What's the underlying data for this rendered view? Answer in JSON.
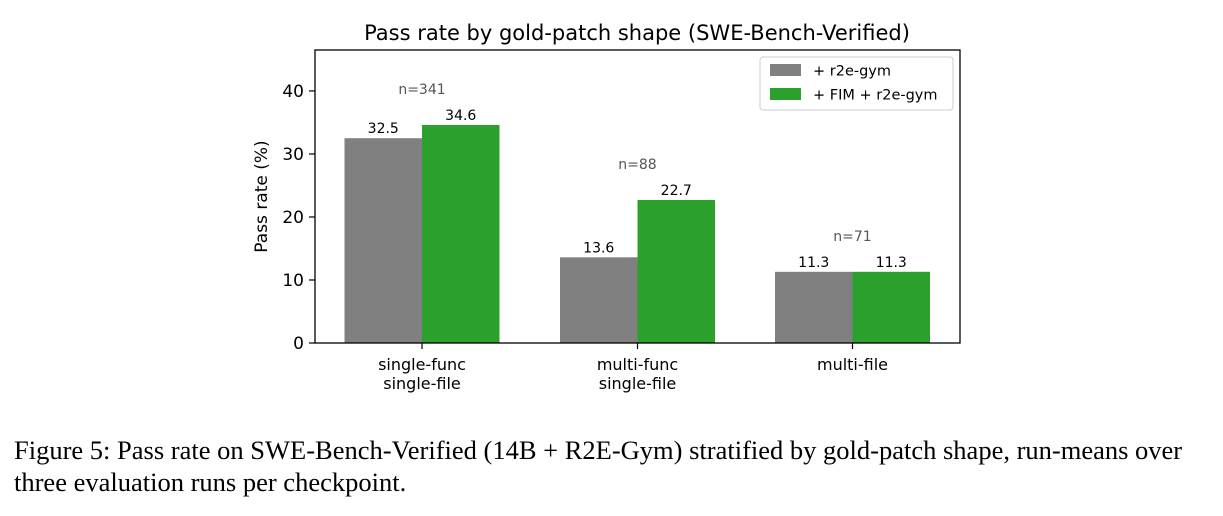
{
  "chart_data": {
    "type": "bar",
    "title": "Pass rate by gold-patch shape (SWE-Bench-Verified)",
    "xlabel": "",
    "ylabel": "Pass rate (%)",
    "ylim": [
      0,
      46.5
    ],
    "yticks": [
      0,
      10,
      20,
      30,
      40
    ],
    "categories": [
      [
        "single-func",
        "single-file"
      ],
      [
        "multi-func",
        "single-file"
      ],
      [
        "multi-file"
      ]
    ],
    "counts": [
      "n=341",
      "n=88",
      "n=71"
    ],
    "legend_position": "top-right",
    "grid": false,
    "series": [
      {
        "name": "+ r2e-gym",
        "color": "#808080",
        "values": [
          32.5,
          13.6,
          11.3
        ],
        "labels": [
          "32.5",
          "13.6",
          "11.3"
        ]
      },
      {
        "name": "+ FIM + r2e-gym",
        "color": "#2ca02c",
        "values": [
          34.6,
          22.7,
          11.3
        ],
        "labels": [
          "34.6",
          "22.7",
          "11.3"
        ]
      }
    ]
  },
  "caption": "Figure 5: Pass rate on SWE-Bench-Verified (14B + R2E-Gym) stratified by gold-patch shape, run-means over three evaluation runs per checkpoint."
}
